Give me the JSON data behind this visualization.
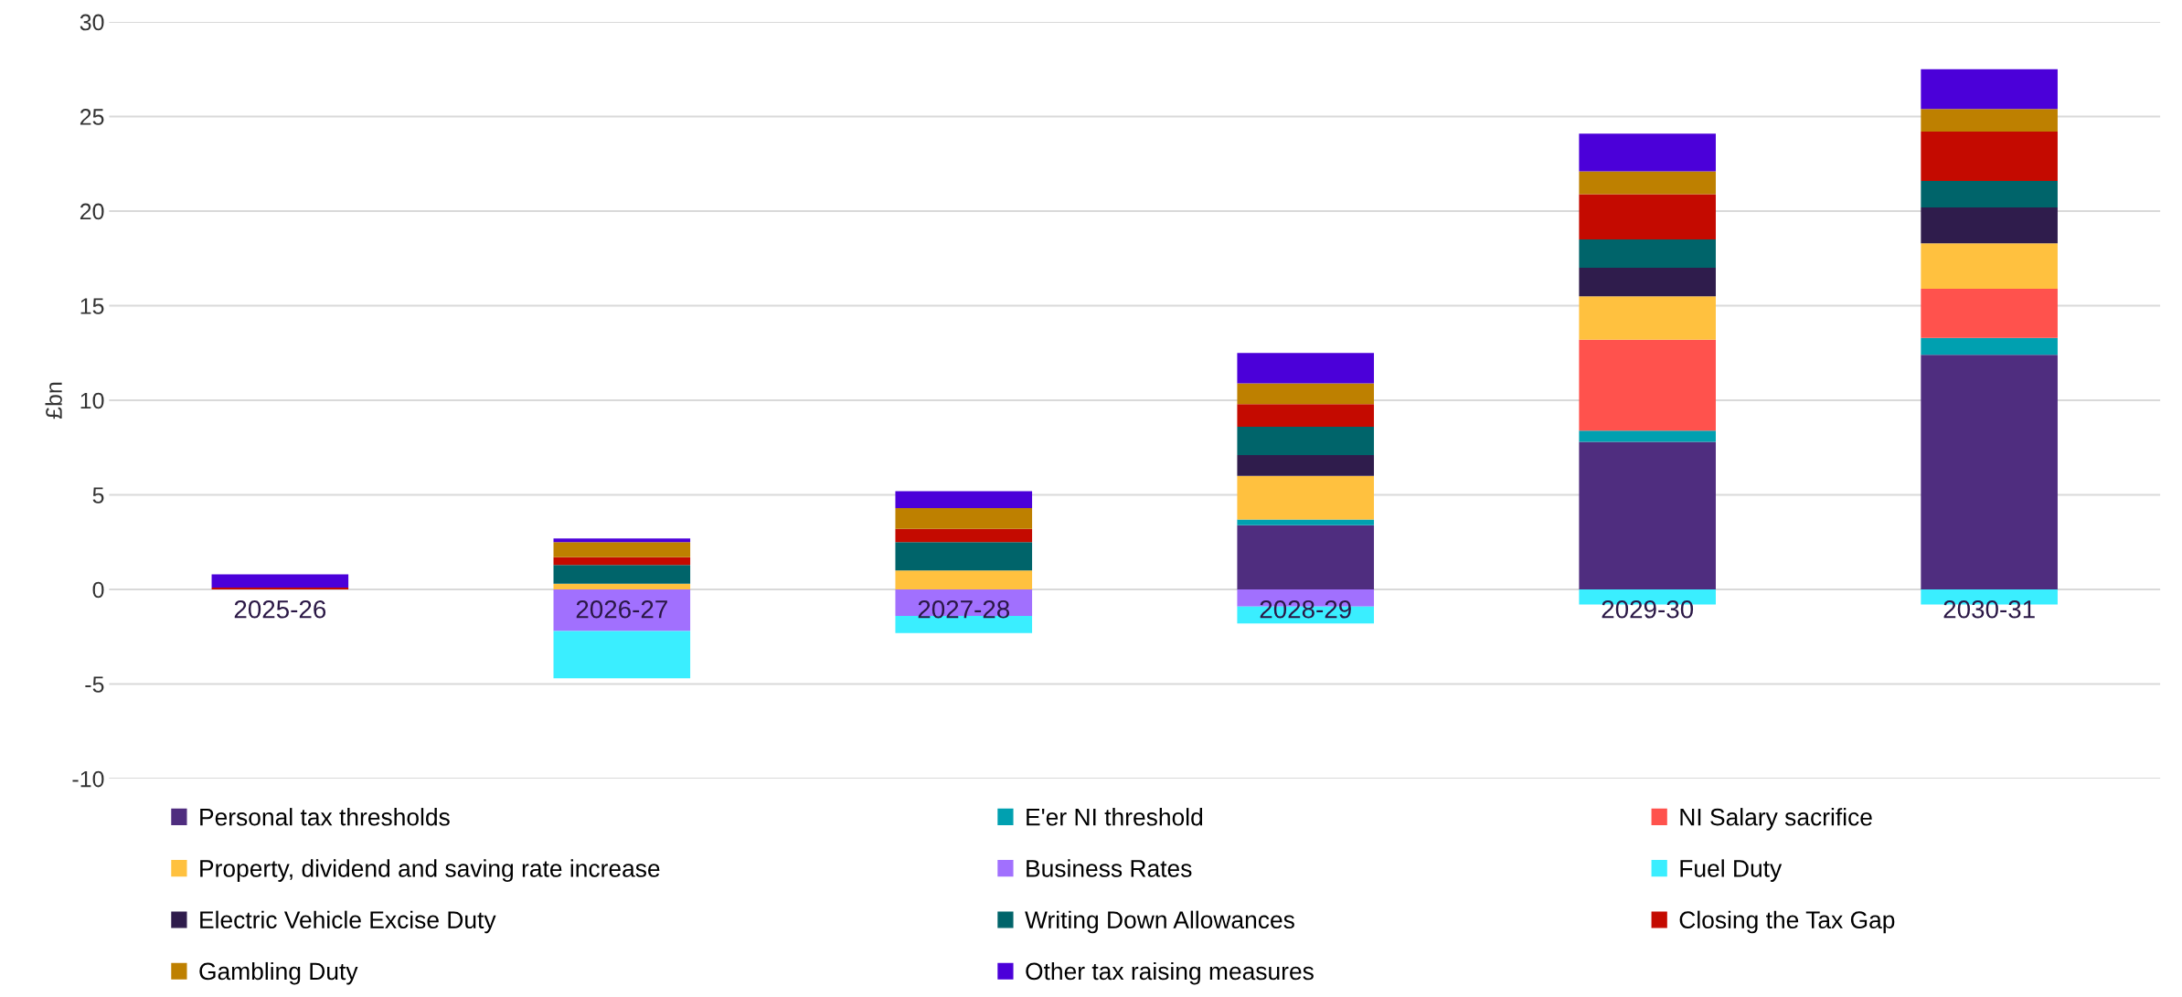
{
  "chart_data": {
    "type": "bar",
    "stacked": true,
    "ylabel": "£bn",
    "categories": [
      "2025-26",
      "2026-27",
      "2027-28",
      "2028-29",
      "2029-30",
      "2030-31"
    ],
    "ylim": [
      -10,
      30
    ],
    "yticks": [
      -10,
      -5,
      0,
      5,
      10,
      15,
      20,
      25,
      30
    ],
    "grid": "y",
    "legend": "bottom",
    "series": [
      {
        "name": "Personal tax thresholds",
        "color": "#4f2d7f",
        "values": [
          0,
          0,
          0,
          3.4,
          7.8,
          12.4
        ]
      },
      {
        "name": "E'er NI threshold",
        "color": "#00a0b0",
        "values": [
          0,
          0,
          0,
          0.3,
          0.6,
          0.9
        ]
      },
      {
        "name": "NI Salary sacrifice",
        "color": "#ff524d",
        "values": [
          0,
          0,
          0,
          0,
          4.8,
          2.6
        ]
      },
      {
        "name": "Property, dividend and saving rate increase",
        "color": "#ffc13f",
        "values": [
          0,
          0.3,
          1.0,
          2.3,
          2.3,
          2.4
        ]
      },
      {
        "name": "Business Rates",
        "color": "#a170fe",
        "values": [
          0,
          -2.2,
          -1.4,
          -0.9,
          0,
          0
        ]
      },
      {
        "name": "Fuel Duty",
        "color": "#3aeeff",
        "values": [
          0,
          -2.5,
          -0.9,
          -0.9,
          -0.8,
          -0.8
        ]
      },
      {
        "name": "Electric Vehicle Excise Duty",
        "color": "#2f1c4c",
        "values": [
          0,
          0,
          0,
          1.1,
          1.5,
          1.9
        ]
      },
      {
        "name": "Writing Down Allowances",
        "color": "#00646a",
        "values": [
          0,
          1.0,
          1.5,
          1.5,
          1.5,
          1.4
        ]
      },
      {
        "name": "Closing the Tax Gap",
        "color": "#c40a00",
        "values": [
          0.1,
          0.4,
          0.7,
          1.2,
          2.4,
          2.6
        ]
      },
      {
        "name": "Gambling Duty",
        "color": "#be8000",
        "values": [
          0,
          0.8,
          1.1,
          1.1,
          1.2,
          1.2
        ]
      },
      {
        "name": "Other tax raising measures",
        "color": "#4b00d9",
        "values": [
          0.7,
          0.2,
          0.9,
          1.6,
          2.0,
          2.1
        ]
      }
    ]
  }
}
